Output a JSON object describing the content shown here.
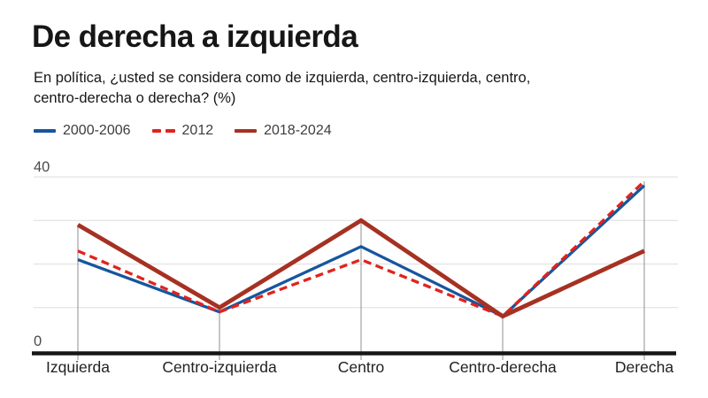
{
  "header": {
    "title": "De derecha a izquierda",
    "subtitle_line1": "En política, ¿usted se considera como de izquierda, centro-izquierda, centro,",
    "subtitle_line2": "centro-derecha o derecha? (%)"
  },
  "chart_data": {
    "type": "line",
    "title": "De derecha a izquierda",
    "subtitle": "En política, ¿usted se considera como de izquierda, centro-izquierda, centro, centro-derecha o derecha? (%)",
    "categories": [
      "Izquierda",
      "Centro-izquierda",
      "Centro",
      "Centro-derecha",
      "Derecha"
    ],
    "series": [
      {
        "name": "2000-2006",
        "color": "#16569d",
        "dash": false,
        "values": [
          21,
          9,
          24,
          8,
          38
        ]
      },
      {
        "name": "2012",
        "color": "#e0231c",
        "dash": true,
        "values": [
          23,
          9,
          21,
          8,
          39
        ]
      },
      {
        "name": "2018-2024",
        "color": "#a63122",
        "dash": false,
        "values": [
          29,
          10,
          30,
          8,
          23
        ]
      }
    ],
    "ylim": [
      0,
      40
    ],
    "yticks": [
      0,
      10,
      20,
      30,
      40
    ],
    "ytick_labels_shown": [
      0,
      40
    ],
    "ylabel": "",
    "xlabel": "",
    "grid": true,
    "legend_position": "top"
  },
  "colors": {
    "grid": "#dedede",
    "drop_line": "#8f8f8f",
    "axis": "#161616",
    "axis_label": "#4a4a4a",
    "category_label": "#222222"
  }
}
